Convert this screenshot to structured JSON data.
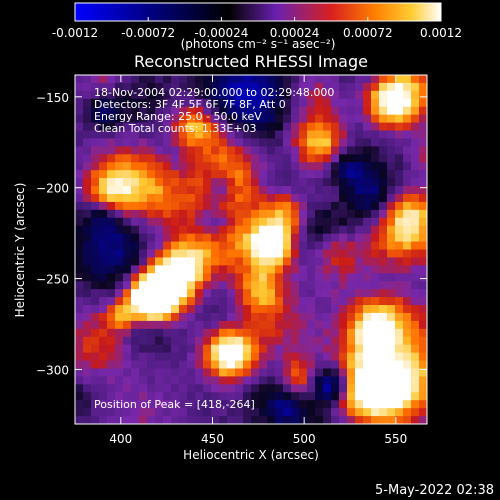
{
  "colorbar": {
    "ticks": [
      "-0.0012",
      "-0.00072",
      "-0.00024",
      "0.00024",
      "0.00072",
      "0.0012"
    ],
    "tick_values": [
      -0.0012,
      -0.00072,
      -0.00024,
      0.00024,
      0.00072,
      0.0012
    ],
    "range": [
      -0.0012,
      0.0012
    ],
    "unit_label": "(photons cm⁻² s⁻¹ asec⁻²)",
    "colors": [
      "#0000ff",
      "#000000",
      "#5a1fa0",
      "#d02020",
      "#ff7a00",
      "#ffcc33",
      "#ffffff"
    ]
  },
  "chart_data": {
    "type": "heatmap",
    "title": "Reconstructed RHESSI Image",
    "xlabel": "Heliocentric X (arcsec)",
    "ylabel": "Heliocentric Y (arcsec)",
    "xlim": [
      375,
      567
    ],
    "ylim": [
      -330,
      -138
    ],
    "xticks": [
      400,
      450,
      500,
      550
    ],
    "yticks": [
      -150,
      -200,
      -250,
      -300
    ],
    "xtick_labels": [
      "400",
      "450",
      "500",
      "550"
    ],
    "ytick_labels": [
      "−150",
      "−200",
      "−250",
      "−300"
    ],
    "info_lines": [
      "18-Nov-2004 02:29:00.000 to 02:29:48.000",
      "Detectors: 3F 4F 5F 6F 7F 8F, Att 0",
      "Energy Range: 25.0 - 50.0 keV",
      "Clean     Total counts: 1.33E+03"
    ],
    "peak_label": "Position of Peak = [418,-264]",
    "peak": [
      418,
      -264
    ]
  },
  "timestamp": "5-May-2022 02:38"
}
